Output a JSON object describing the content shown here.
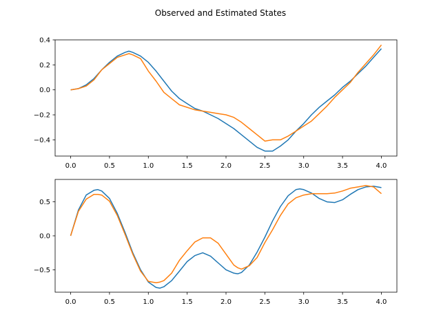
{
  "figure": {
    "title": "Observed and Estimated States"
  },
  "colors": {
    "series_1": "#1f77b4",
    "series_2": "#ff7f0e",
    "axes": "#000000",
    "background": "#ffffff"
  },
  "chart_data": [
    {
      "type": "line",
      "title": "",
      "xlabel": "",
      "ylabel": "",
      "xlim": [
        -0.2,
        4.2
      ],
      "ylim": [
        -0.53,
        0.4
      ],
      "grid": false,
      "x_ticks": [
        0.0,
        0.5,
        1.0,
        1.5,
        2.0,
        2.5,
        3.0,
        3.5,
        4.0
      ],
      "x_tick_labels": [
        "0.0",
        "0.5",
        "1.0",
        "1.5",
        "2.0",
        "2.5",
        "3.0",
        "3.5",
        "4.0"
      ],
      "y_ticks": [
        -0.4,
        -0.2,
        0.0,
        0.2,
        0.4
      ],
      "y_tick_labels": [
        "−0.4",
        "−0.2",
        "0.0",
        "0.2",
        "0.4"
      ],
      "x": [
        0.0,
        0.1,
        0.2,
        0.3,
        0.4,
        0.5,
        0.6,
        0.7,
        0.75,
        0.8,
        0.9,
        1.0,
        1.1,
        1.2,
        1.3,
        1.4,
        1.5,
        1.6,
        1.7,
        1.8,
        1.9,
        2.0,
        2.1,
        2.2,
        2.3,
        2.4,
        2.5,
        2.6,
        2.7,
        2.8,
        2.9,
        3.0,
        3.1,
        3.2,
        3.3,
        3.4,
        3.5,
        3.6,
        3.7,
        3.8,
        3.9,
        4.0
      ],
      "series": [
        {
          "values": [
            0.0,
            0.01,
            0.04,
            0.09,
            0.16,
            0.22,
            0.27,
            0.3,
            0.31,
            0.3,
            0.27,
            0.22,
            0.15,
            0.07,
            -0.01,
            -0.07,
            -0.11,
            -0.15,
            -0.17,
            -0.2,
            -0.23,
            -0.27,
            -0.31,
            -0.36,
            -0.41,
            -0.46,
            -0.49,
            -0.49,
            -0.45,
            -0.4,
            -0.33,
            -0.27,
            -0.2,
            -0.14,
            -0.09,
            -0.04,
            0.02,
            0.07,
            0.13,
            0.19,
            0.26,
            0.33
          ]
        },
        {
          "values": [
            0.0,
            0.01,
            0.03,
            0.08,
            0.16,
            0.21,
            0.26,
            0.28,
            0.29,
            0.28,
            0.25,
            0.15,
            0.07,
            -0.02,
            -0.07,
            -0.12,
            -0.14,
            -0.16,
            -0.17,
            -0.18,
            -0.19,
            -0.2,
            -0.22,
            -0.26,
            -0.31,
            -0.36,
            -0.41,
            -0.4,
            -0.4,
            -0.37,
            -0.33,
            -0.29,
            -0.25,
            -0.19,
            -0.13,
            -0.06,
            0.0,
            0.06,
            0.14,
            0.21,
            0.28,
            0.36
          ]
        }
      ]
    },
    {
      "type": "line",
      "title": "",
      "xlabel": "",
      "ylabel": "",
      "xlim": [
        -0.2,
        4.2
      ],
      "ylim": [
        -0.83,
        0.83
      ],
      "grid": false,
      "x_ticks": [
        0.0,
        0.5,
        1.0,
        1.5,
        2.0,
        2.5,
        3.0,
        3.5,
        4.0
      ],
      "x_tick_labels": [
        "0.0",
        "0.5",
        "1.0",
        "1.5",
        "2.0",
        "2.5",
        "3.0",
        "3.5",
        "4.0"
      ],
      "y_ticks": [
        -0.5,
        0.0,
        0.5
      ],
      "y_tick_labels": [
        "−0.5",
        "0.0",
        "0.5"
      ],
      "x": [
        0.0,
        0.1,
        0.2,
        0.3,
        0.35,
        0.4,
        0.5,
        0.6,
        0.7,
        0.8,
        0.9,
        1.0,
        1.1,
        1.15,
        1.2,
        1.3,
        1.4,
        1.5,
        1.6,
        1.7,
        1.8,
        1.9,
        2.0,
        2.1,
        2.15,
        2.2,
        2.3,
        2.4,
        2.5,
        2.6,
        2.7,
        2.8,
        2.9,
        2.95,
        3.0,
        3.1,
        3.2,
        3.3,
        3.4,
        3.5,
        3.6,
        3.7,
        3.8,
        3.9,
        4.0
      ],
      "series": [
        {
          "values": [
            0.0,
            0.38,
            0.6,
            0.67,
            0.68,
            0.66,
            0.55,
            0.33,
            0.05,
            -0.25,
            -0.5,
            -0.68,
            -0.76,
            -0.77,
            -0.75,
            -0.66,
            -0.52,
            -0.38,
            -0.29,
            -0.25,
            -0.3,
            -0.4,
            -0.5,
            -0.55,
            -0.56,
            -0.54,
            -0.43,
            -0.24,
            -0.02,
            0.22,
            0.43,
            0.59,
            0.68,
            0.69,
            0.68,
            0.63,
            0.55,
            0.5,
            0.49,
            0.53,
            0.61,
            0.68,
            0.72,
            0.73,
            0.71
          ]
        },
        {
          "values": [
            0.0,
            0.36,
            0.54,
            0.61,
            0.61,
            0.6,
            0.51,
            0.3,
            0.02,
            -0.27,
            -0.52,
            -0.67,
            -0.69,
            -0.68,
            -0.66,
            -0.55,
            -0.36,
            -0.22,
            -0.09,
            -0.03,
            -0.03,
            -0.11,
            -0.27,
            -0.43,
            -0.47,
            -0.49,
            -0.44,
            -0.32,
            -0.1,
            0.09,
            0.3,
            0.47,
            0.56,
            0.58,
            0.6,
            0.62,
            0.62,
            0.62,
            0.63,
            0.66,
            0.7,
            0.72,
            0.74,
            0.72,
            0.62
          ]
        }
      ]
    }
  ]
}
